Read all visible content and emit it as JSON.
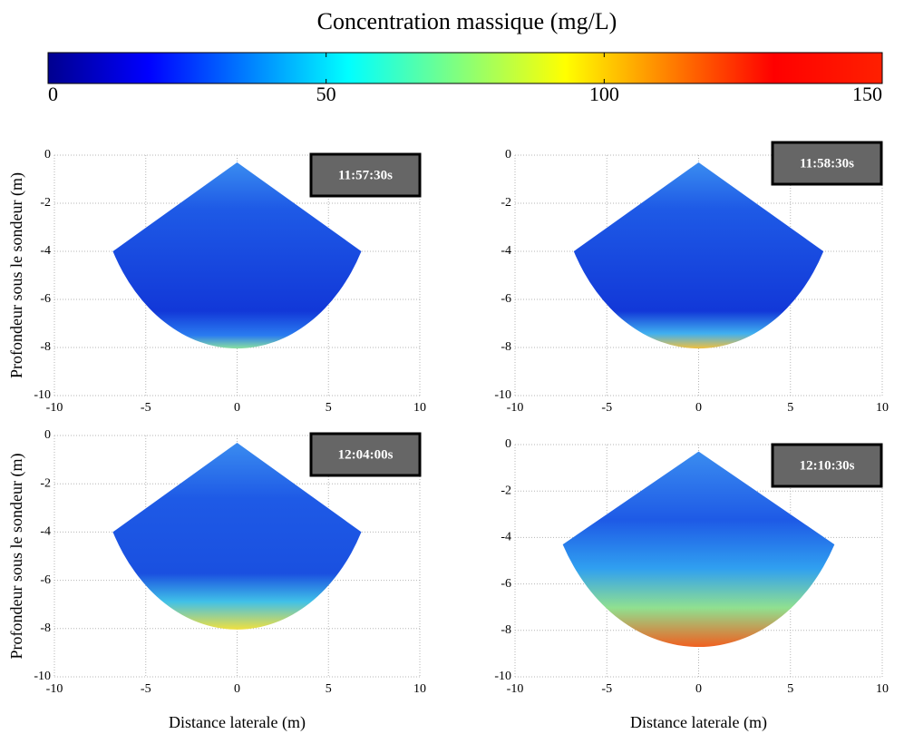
{
  "colorbar": {
    "title": "Concentration massique (mg/L)",
    "lim": [
      0,
      150
    ],
    "ticks": [
      0,
      50,
      100,
      150
    ]
  },
  "chart_data": [
    {
      "type": "fan",
      "timestamp": "11:57:30s",
      "ylabel": "Profondeur sous le sondeur (m)",
      "xlim": [
        -10,
        10
      ],
      "xticks": [
        -10,
        -5,
        0,
        5,
        10
      ],
      "ylim": [
        -10,
        0
      ],
      "yticks": [
        0,
        -2,
        -4,
        -6,
        -8,
        -10
      ],
      "grid": true,
      "apex": [
        0,
        -0.3
      ],
      "edge": [
        6.8,
        -4
      ]
    },
    {
      "type": "fan",
      "timestamp": "11:58:30s",
      "xlim": [
        -10,
        10
      ],
      "xticks": [
        -10,
        -5,
        0,
        5,
        10
      ],
      "ylim": [
        -10,
        0
      ],
      "yticks": [
        0,
        -2,
        -4,
        -6,
        -8,
        -10
      ],
      "grid": true,
      "apex": [
        0,
        -0.3
      ],
      "edge": [
        6.8,
        -4
      ]
    },
    {
      "type": "fan",
      "timestamp": "12:04:00s",
      "ylabel": "Profondeur sous le sondeur (m)",
      "xlabel": "Distance laterale (m)",
      "xlim": [
        -10,
        10
      ],
      "xticks": [
        -10,
        -5,
        0,
        5,
        10
      ],
      "ylim": [
        -10,
        0
      ],
      "yticks": [
        0,
        -2,
        -4,
        -6,
        -8,
        -10
      ],
      "grid": true,
      "apex": [
        0,
        -0.3
      ],
      "edge": [
        6.8,
        -4
      ]
    },
    {
      "type": "fan",
      "timestamp": "12:10:30s",
      "xlabel": "Distance laterale (m)",
      "xlim": [
        -10,
        10
      ],
      "xticks": [
        -10,
        -5,
        0,
        5,
        10
      ],
      "ylim": [
        -10,
        0
      ],
      "yticks": [
        0,
        -2,
        -4,
        -6,
        -8,
        -10
      ],
      "grid": true,
      "apex": [
        0,
        -0.3
      ],
      "edge": [
        7.4,
        -4.3
      ]
    }
  ]
}
